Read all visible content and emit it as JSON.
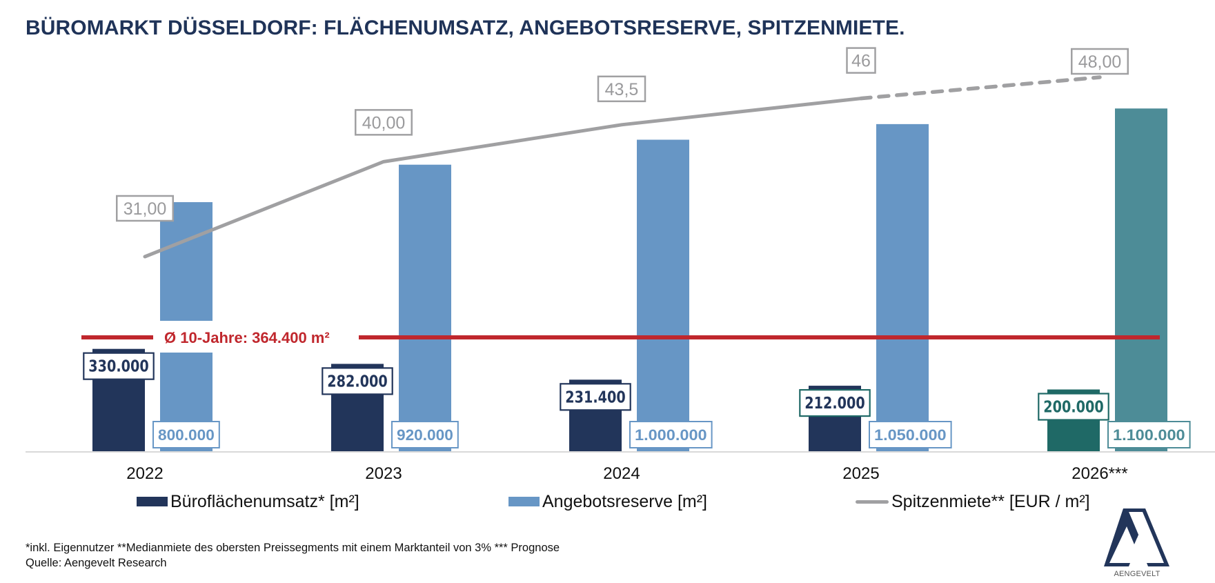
{
  "title": "BÜROMARKT DÜSSELDORF: FLÄCHENUMSATZ, ANGEBOTSRESERVE, SPITZENMIETE.",
  "colors": {
    "navy": "#22355a",
    "light_blue": "#6796c5",
    "teal_dark": "#1f6966",
    "teal_light": "#4d8c97",
    "rent_line": "#a0a0a2",
    "average_line": "#c0272d",
    "axis": "#d9d9d9"
  },
  "chart_data": {
    "type": "bar",
    "title": "BÜROMARKT DÜSSELDORF: FLÄCHENUMSATZ, ANGEBOTSRESERVE, SPITZENMIETE.",
    "categories": [
      "2022",
      "2023",
      "2024",
      "2025",
      "2026***"
    ],
    "series": [
      {
        "name": "Büroflächenumsatz* [m²]",
        "type": "bar",
        "values": [
          330000,
          282000,
          231400,
          212000,
          200000
        ],
        "labels": [
          "330.000",
          "282.000",
          "231.400",
          "212.000",
          "200.000"
        ]
      },
      {
        "name": "Angebotsreserve [m²]",
        "type": "bar",
        "values": [
          800000,
          920000,
          1000000,
          1050000,
          1100000
        ],
        "labels": [
          "800.000",
          "920.000",
          "1.000.000",
          "1.050.000",
          "1.100.000"
        ]
      },
      {
        "name": "Spitzenmiete** [EUR / m²]",
        "type": "line",
        "secondary_axis": true,
        "values": [
          31.0,
          40.0,
          43.5,
          46.0,
          48.0
        ],
        "labels": [
          "31,00",
          "40,00",
          "43,5",
          "46",
          "48,00"
        ],
        "dashed_from_index": 3
      }
    ],
    "forecast_index": 4,
    "reference_line": {
      "label": "Ø 10-Jahre: 364.400 m²",
      "value": 364400
    },
    "ylim": [
      0,
      1200000
    ],
    "y2lim": [
      0,
      60
    ],
    "grid": false,
    "legend_position": "bottom",
    "xlabel": "",
    "ylabel": ""
  },
  "legend": [
    {
      "label": "Büroflächenumsatz* [m²]"
    },
    {
      "label": "Angebotsreserve [m²]"
    },
    {
      "label": "Spitzenmiete** [EUR / m²]"
    }
  ],
  "footnote": {
    "line1": "*inkl. Eigennutzer **Medianmiete des obersten Preissegments mit einem Marktanteil von 3% *** Prognose",
    "line2": "Quelle: Aengevelt Research"
  },
  "logo": {
    "text": "AENGEVELT"
  }
}
